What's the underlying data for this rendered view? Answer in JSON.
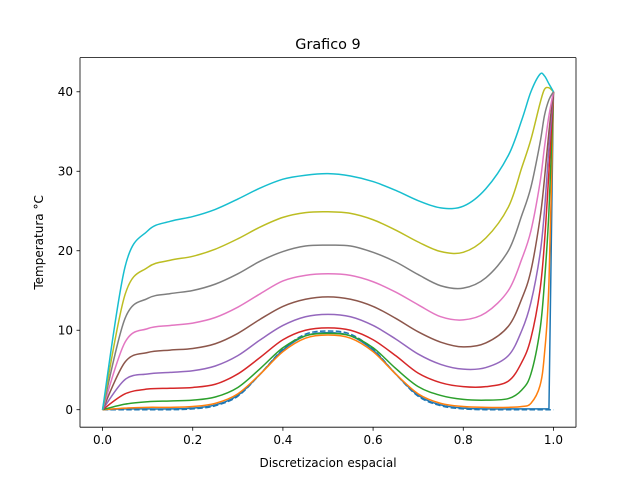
{
  "chart_data": {
    "type": "line",
    "title": "Grafico 9",
    "xlabel": "Discretizacion espacial",
    "ylabel": "Temperatura °C",
    "xlim": [
      -0.05,
      1.05
    ],
    "ylim": [
      -2.2,
      44.3
    ],
    "xticks": [
      "0.0",
      "0.2",
      "0.4",
      "0.6",
      "0.8",
      "1.0"
    ],
    "yticks": [
      "0",
      "10",
      "20",
      "30",
      "40"
    ],
    "grid": false,
    "legend": "none",
    "x": [
      0.0,
      0.05,
      0.1,
      0.15,
      0.2,
      0.25,
      0.3,
      0.35,
      0.4,
      0.45,
      0.5,
      0.55,
      0.6,
      0.65,
      0.7,
      0.75,
      0.8,
      0.85,
      0.9,
      0.93,
      0.95,
      0.97,
      0.98,
      0.99,
      1.0
    ],
    "series": [
      {
        "color": "#1f77b4",
        "dashed": true,
        "values": [
          0,
          0,
          0,
          0,
          0.1,
          0.5,
          1.7,
          4.5,
          7.6,
          9.5,
          9.9,
          9.5,
          7.6,
          4.5,
          1.7,
          0.5,
          0.1,
          0,
          0,
          0,
          0,
          0,
          0,
          0,
          0
        ]
      },
      {
        "color": "#1f77b4",
        "dashed": false,
        "values": [
          0,
          0.1,
          0.1,
          0.1,
          0.2,
          0.6,
          1.8,
          4.5,
          7.5,
          9.3,
          9.7,
          9.3,
          7.5,
          4.5,
          1.8,
          0.6,
          0.2,
          0.1,
          0.1,
          0.1,
          0.1,
          0.1,
          0.1,
          0.1,
          40
        ]
      },
      {
        "color": "#ff7f0e",
        "dashed": false,
        "values": [
          0,
          0.2,
          0.3,
          0.3,
          0.4,
          0.8,
          2.0,
          4.5,
          7.3,
          9.0,
          9.4,
          9.0,
          7.3,
          4.5,
          2.0,
          0.8,
          0.4,
          0.3,
          0.3,
          0.4,
          0.8,
          3.0,
          7.0,
          16.0,
          40
        ]
      },
      {
        "color": "#2ca02c",
        "dashed": false,
        "values": [
          0,
          0.7,
          1.0,
          1.1,
          1.2,
          1.6,
          2.8,
          5.2,
          7.8,
          9.3,
          9.6,
          9.3,
          7.8,
          5.2,
          2.9,
          1.8,
          1.3,
          1.2,
          1.4,
          2.5,
          4.5,
          10.0,
          16.0,
          25.0,
          40
        ]
      },
      {
        "color": "#d62728",
        "dashed": false,
        "values": [
          0,
          2.0,
          2.6,
          2.7,
          2.8,
          3.2,
          4.5,
          6.6,
          8.8,
          10.0,
          10.3,
          10.0,
          8.8,
          6.8,
          4.6,
          3.4,
          2.9,
          2.9,
          3.6,
          6.0,
          9.0,
          15.0,
          21.0,
          30.0,
          40
        ]
      },
      {
        "color": "#9467bd",
        "dashed": false,
        "values": [
          0,
          3.8,
          4.5,
          4.7,
          4.9,
          5.5,
          6.8,
          8.8,
          10.6,
          11.7,
          12.0,
          11.7,
          10.6,
          8.9,
          7.0,
          5.7,
          5.1,
          5.3,
          6.8,
          10.0,
          13.5,
          19.5,
          25.0,
          33.0,
          40
        ]
      },
      {
        "color": "#8c564b",
        "dashed": false,
        "values": [
          0,
          6.0,
          7.2,
          7.5,
          7.7,
          8.3,
          9.6,
          11.4,
          13.0,
          13.9,
          14.2,
          13.9,
          13.0,
          11.5,
          9.8,
          8.5,
          7.9,
          8.4,
          10.5,
          14.0,
          17.5,
          24.0,
          29.0,
          35.0,
          40
        ]
      },
      {
        "color": "#e377c2",
        "dashed": false,
        "values": [
          0,
          8.5,
          10.2,
          10.6,
          10.9,
          11.6,
          12.9,
          14.6,
          16.2,
          16.9,
          17.1,
          16.9,
          16.1,
          14.8,
          13.2,
          11.7,
          11.3,
          12.2,
          15.0,
          19.0,
          22.5,
          28.5,
          33.0,
          37.0,
          40
        ]
      },
      {
        "color": "#7f7f7f",
        "dashed": false,
        "values": [
          0,
          11.5,
          14.0,
          14.6,
          15.0,
          15.8,
          17.1,
          18.7,
          19.9,
          20.6,
          20.7,
          20.6,
          19.8,
          18.6,
          17.0,
          15.6,
          15.3,
          16.6,
          20.0,
          24.5,
          28.0,
          33.5,
          37.0,
          39.0,
          40
        ]
      },
      {
        "color": "#bcbd22",
        "dashed": false,
        "values": [
          0,
          14.5,
          17.9,
          18.8,
          19.3,
          20.2,
          21.5,
          23.0,
          24.2,
          24.8,
          24.9,
          24.7,
          23.9,
          22.6,
          21.1,
          19.9,
          19.8,
          21.6,
          25.5,
          30.5,
          34.0,
          38.5,
          40.3,
          40.5,
          40
        ]
      },
      {
        "color": "#17becf",
        "dashed": false,
        "values": [
          0,
          18.0,
          22.5,
          23.7,
          24.3,
          25.2,
          26.5,
          27.9,
          29.0,
          29.5,
          29.7,
          29.4,
          28.7,
          27.6,
          26.3,
          25.4,
          25.6,
          27.8,
          32.0,
          36.5,
          40.0,
          42.2,
          42.0,
          41.0,
          40
        ]
      }
    ]
  }
}
